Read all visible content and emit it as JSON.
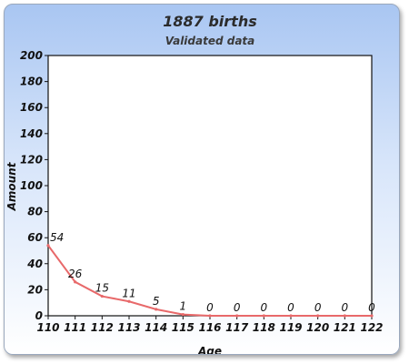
{
  "chart_data": {
    "type": "line",
    "title": "1887 births",
    "subtitle": "Validated data",
    "xlabel": "Age",
    "ylabel": "Amount",
    "x": [
      110,
      111,
      112,
      113,
      114,
      115,
      116,
      117,
      118,
      119,
      120,
      121,
      122
    ],
    "series": [
      {
        "values": [
          54,
          26,
          15,
          11,
          5,
          1,
          0,
          0,
          0,
          0,
          0,
          0,
          0
        ]
      }
    ],
    "ylim": [
      0,
      200
    ],
    "yticks": [
      0,
      20,
      40,
      60,
      80,
      100,
      120,
      140,
      160,
      180,
      200
    ],
    "grid": false,
    "line_color": "#e8696a"
  }
}
